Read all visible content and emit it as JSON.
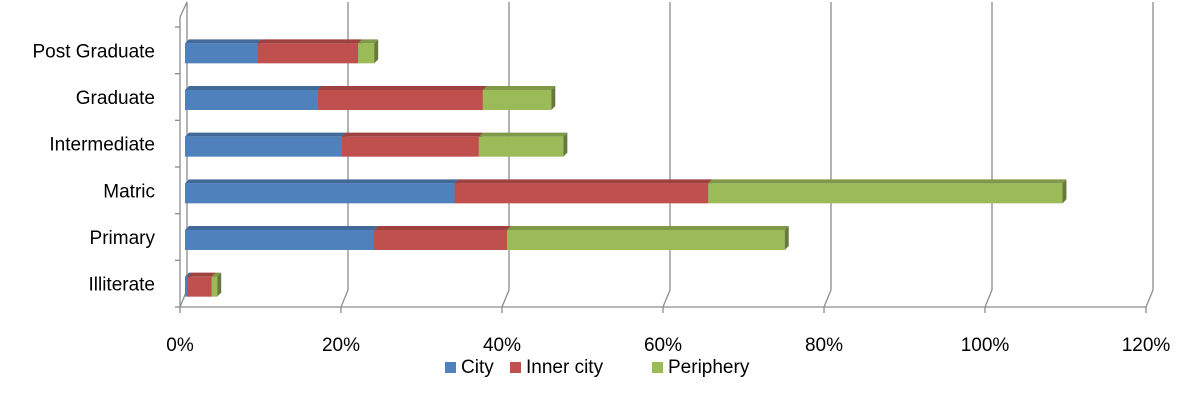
{
  "chart_data": {
    "type": "bar",
    "orientation": "horizontal",
    "stacked": true,
    "style": "3d",
    "categories": [
      "Illiterate",
      "Primary",
      "Matric",
      "Intermediate",
      "Graduate",
      "Post Graduate"
    ],
    "series": [
      {
        "name": "City",
        "color": "#4F81BD",
        "values": [
          0.3,
          23.5,
          33.5,
          19.5,
          16.5,
          9.0
        ]
      },
      {
        "name": "Inner city",
        "color": "#C0504D",
        "values": [
          3.0,
          16.5,
          31.5,
          17.0,
          20.5,
          12.5
        ]
      },
      {
        "name": "Periphery",
        "color": "#9BBB59",
        "values": [
          0.7,
          34.5,
          44.0,
          10.5,
          8.5,
          2.0
        ]
      }
    ],
    "xlim": [
      0,
      120
    ],
    "xticks": [
      "0%",
      "20%",
      "40%",
      "60%",
      "80%",
      "100%",
      "120%"
    ],
    "xtick_values": [
      0,
      20,
      40,
      60,
      80,
      100,
      120
    ],
    "grid": "vertical",
    "legend_position": "bottom"
  }
}
